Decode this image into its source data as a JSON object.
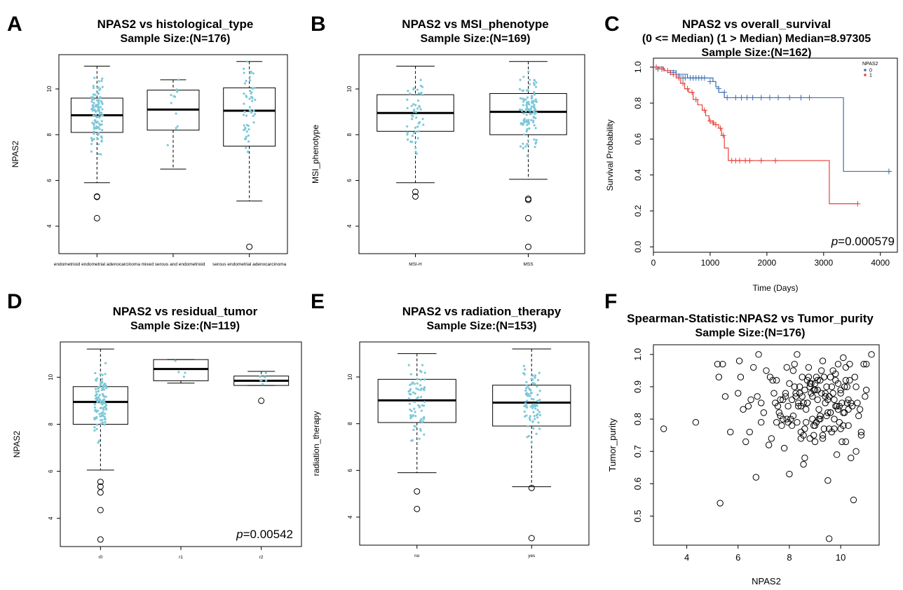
{
  "chart_data": [
    {
      "id": "A",
      "panel_letter": "A",
      "type": "box",
      "title": "NPAS2 vs histological_type",
      "subtitle": "Sample Size:(N=176)",
      "xlabel": "",
      "ylabel": "NPAS2",
      "ylim": [
        2.8,
        11.5
      ],
      "yticks": [
        4,
        6,
        8,
        10
      ],
      "categories": [
        "endometrioid endometrial adenocarcinoma",
        "mixed serous and endometrioid",
        "serous endometrial adenocarcinoma"
      ],
      "boxes": [
        {
          "min": 5.9,
          "q1": 8.1,
          "median": 8.85,
          "q3": 9.6,
          "max": 11.0
        },
        {
          "min": 6.5,
          "q1": 8.2,
          "median": 9.1,
          "q3": 9.95,
          "max": 10.4
        },
        {
          "min": 5.1,
          "q1": 7.5,
          "median": 9.05,
          "q3": 10.05,
          "max": 11.2
        }
      ],
      "outliers": [
        {
          "category": 0,
          "values": [
            5.3,
            5.28,
            4.35
          ]
        },
        {
          "category": 2,
          "values": [
            3.1
          ]
        }
      ],
      "point_counts": [
        110,
        12,
        54
      ],
      "p_value": ""
    },
    {
      "id": "B",
      "panel_letter": "B",
      "type": "box",
      "title": "NPAS2 vs MSI_phenotype",
      "subtitle": "Sample Size:(N=169)",
      "xlabel": "",
      "ylabel": "MSI_phenotype",
      "ylim": [
        2.8,
        11.5
      ],
      "yticks": [
        4,
        6,
        8,
        10
      ],
      "categories": [
        "MSI-H",
        "MSS"
      ],
      "boxes": [
        {
          "min": 5.9,
          "q1": 8.15,
          "median": 8.95,
          "q3": 9.75,
          "max": 11.0
        },
        {
          "min": 6.05,
          "q1": 8.0,
          "median": 9.0,
          "q3": 9.8,
          "max": 11.2
        }
      ],
      "outliers": [
        {
          "category": 0,
          "values": [
            5.5,
            5.3
          ]
        },
        {
          "category": 1,
          "values": [
            5.2,
            5.15,
            4.35,
            3.1
          ]
        }
      ],
      "point_counts": [
        50,
        119
      ],
      "p_value": ""
    },
    {
      "id": "C",
      "panel_letter": "C",
      "type": "line",
      "title": "NPAS2 vs overall_survival",
      "subtitle": "(0 <= Median) (1 > Median) Median=8.97305",
      "subtitle2": "Sample Size:(N=162)",
      "xlabel": "Time (Days)",
      "ylabel": "Survival Probability",
      "xlim": [
        0,
        4300
      ],
      "ylim": [
        -0.03,
        1.05
      ],
      "xticks": [
        0,
        1000,
        2000,
        3000,
        4000
      ],
      "yticks": [
        0.0,
        0.2,
        0.4,
        0.6,
        0.8,
        1.0
      ],
      "legend_title": "NPAS2",
      "legend_position": "top-right",
      "series": [
        {
          "name": "0",
          "color": "#3d6db5",
          "steps": [
            [
              0,
              1.0
            ],
            [
              180,
              0.98
            ],
            [
              400,
              0.96
            ],
            [
              600,
              0.94
            ],
            [
              1050,
              0.92
            ],
            [
              1100,
              0.89
            ],
            [
              1150,
              0.86
            ],
            [
              1250,
              0.83
            ],
            [
              3350,
              0.42
            ],
            [
              4200,
              0.42
            ]
          ],
          "censors": [
            [
              80,
              0.99
            ],
            [
              150,
              0.99
            ],
            [
              300,
              0.97
            ],
            [
              350,
              0.97
            ],
            [
              450,
              0.95
            ],
            [
              520,
              0.94
            ],
            [
              560,
              0.94
            ],
            [
              650,
              0.94
            ],
            [
              700,
              0.94
            ],
            [
              750,
              0.94
            ],
            [
              800,
              0.94
            ],
            [
              850,
              0.94
            ],
            [
              900,
              0.94
            ],
            [
              1000,
              0.92
            ],
            [
              1150,
              0.88
            ],
            [
              1250,
              0.86
            ],
            [
              1300,
              0.83
            ],
            [
              1450,
              0.83
            ],
            [
              1550,
              0.83
            ],
            [
              1650,
              0.83
            ],
            [
              1750,
              0.83
            ],
            [
              1900,
              0.83
            ],
            [
              2050,
              0.83
            ],
            [
              2200,
              0.83
            ],
            [
              2400,
              0.83
            ],
            [
              2600,
              0.83
            ],
            [
              2750,
              0.83
            ],
            [
              4150,
              0.42
            ]
          ]
        },
        {
          "name": "1",
          "color": "#e8413a",
          "steps": [
            [
              0,
              1.0
            ],
            [
              100,
              0.99
            ],
            [
              200,
              0.98
            ],
            [
              300,
              0.96
            ],
            [
              400,
              0.94
            ],
            [
              480,
              0.91
            ],
            [
              550,
              0.88
            ],
            [
              620,
              0.86
            ],
            [
              700,
              0.82
            ],
            [
              780,
              0.79
            ],
            [
              860,
              0.76
            ],
            [
              920,
              0.73
            ],
            [
              980,
              0.7
            ],
            [
              1060,
              0.68
            ],
            [
              1150,
              0.66
            ],
            [
              1200,
              0.62
            ],
            [
              1250,
              0.55
            ],
            [
              1320,
              0.48
            ],
            [
              3100,
              0.24
            ],
            [
              3600,
              0.24
            ]
          ],
          "censors": [
            [
              50,
              1.0
            ],
            [
              150,
              0.99
            ],
            [
              250,
              0.98
            ],
            [
              350,
              0.96
            ],
            [
              450,
              0.94
            ],
            [
              520,
              0.91
            ],
            [
              600,
              0.88
            ],
            [
              680,
              0.86
            ],
            [
              750,
              0.82
            ],
            [
              900,
              0.76
            ],
            [
              1000,
              0.7
            ],
            [
              1050,
              0.69
            ],
            [
              1100,
              0.68
            ],
            [
              1180,
              0.66
            ],
            [
              1230,
              0.62
            ],
            [
              1380,
              0.48
            ],
            [
              1450,
              0.48
            ],
            [
              1520,
              0.48
            ],
            [
              1620,
              0.48
            ],
            [
              1700,
              0.48
            ],
            [
              1900,
              0.48
            ],
            [
              2150,
              0.48
            ],
            [
              3600,
              0.24
            ]
          ]
        }
      ],
      "p_value": "=0.000579"
    },
    {
      "id": "D",
      "panel_letter": "D",
      "type": "box",
      "title": "NPAS2 vs residual_tumor",
      "subtitle": "Sample Size:(N=119)",
      "xlabel": "",
      "ylabel": "NPAS2",
      "ylim": [
        2.8,
        11.5
      ],
      "yticks": [
        4,
        6,
        8,
        10
      ],
      "categories": [
        "r0",
        "r1",
        "r2"
      ],
      "boxes": [
        {
          "min": 6.05,
          "q1": 8.0,
          "median": 8.95,
          "q3": 9.6,
          "max": 11.2
        },
        {
          "min": 9.75,
          "q1": 9.85,
          "median": 10.35,
          "q3": 10.75,
          "max": 10.75
        },
        {
          "min": 9.65,
          "q1": 9.65,
          "median": 9.85,
          "q3": 10.05,
          "max": 10.25
        }
      ],
      "outliers": [
        {
          "category": 0,
          "values": [
            5.55,
            5.35,
            5.1,
            4.35,
            3.1
          ]
        },
        {
          "category": 2,
          "values": [
            9.0
          ]
        }
      ],
      "point_counts": [
        108,
        4,
        7
      ],
      "p_value": "=0.00542"
    },
    {
      "id": "E",
      "panel_letter": "E",
      "type": "box",
      "title": "NPAS2 vs radiation_therapy",
      "subtitle": "Sample Size:(N=153)",
      "xlabel": "",
      "ylabel": "radiation_therapy",
      "ylim": [
        2.8,
        11.5
      ],
      "yticks": [
        4,
        6,
        8,
        10
      ],
      "categories": [
        "no",
        "yes"
      ],
      "boxes": [
        {
          "min": 5.9,
          "q1": 8.05,
          "median": 9.0,
          "q3": 9.9,
          "max": 11.0
        },
        {
          "min": 5.3,
          "q1": 7.9,
          "median": 8.9,
          "q3": 9.65,
          "max": 11.2
        }
      ],
      "outliers": [
        {
          "category": 0,
          "values": [
            5.1,
            4.35
          ]
        },
        {
          "category": 1,
          "values": [
            5.25,
            3.1
          ]
        }
      ],
      "point_counts": [
        70,
        83
      ],
      "p_value": ""
    },
    {
      "id": "F",
      "panel_letter": "F",
      "type": "scatter",
      "title": "Spearman-Statistic:NPAS2 vs Tumor_purity",
      "subtitle": "Sample Size:(N=176)",
      "xlabel": "NPAS2",
      "ylabel": "Tumor_purity",
      "xlim": [
        2.7,
        11.5
      ],
      "ylim": [
        0.41,
        1.03
      ],
      "xticks": [
        4,
        6,
        8,
        10
      ],
      "yticks": [
        0.5,
        0.6,
        0.7,
        0.8,
        0.9,
        1.0
      ],
      "x": [
        3.1,
        4.35,
        5.2,
        5.25,
        5.4,
        5.5,
        5.7,
        6.05,
        6.1,
        6.2,
        6.3,
        6.45,
        6.5,
        6.6,
        6.7,
        6.75,
        6.8,
        6.9,
        7.0,
        7.1,
        7.25,
        7.35,
        7.4,
        7.45,
        7.5,
        7.55,
        7.6,
        7.65,
        7.7,
        7.75,
        7.8,
        7.85,
        7.9,
        7.95,
        8.0,
        8.05,
        8.1,
        8.15,
        8.2,
        8.25,
        8.3,
        8.35,
        8.4,
        8.45,
        8.5,
        8.55,
        8.6,
        8.65,
        8.7,
        8.75,
        8.8,
        8.85,
        8.9,
        8.95,
        9.0,
        9.05,
        9.1,
        9.15,
        9.2,
        9.25,
        9.3,
        9.35,
        9.4,
        9.45,
        9.5,
        9.55,
        9.6,
        9.65,
        9.7,
        9.75,
        9.8,
        9.85,
        9.9,
        9.95,
        10.0,
        10.05,
        10.1,
        10.15,
        10.2,
        10.25,
        10.3,
        10.35,
        10.4,
        10.5,
        10.6,
        10.7,
        10.8,
        10.9,
        11.0,
        11.2,
        5.3,
        6.0,
        6.4,
        6.9,
        7.3,
        7.5,
        7.9,
        8.0,
        8.2,
        8.3,
        8.5,
        8.6,
        8.7,
        8.8,
        8.9,
        9.0,
        9.1,
        9.2,
        9.3,
        9.4,
        9.5,
        9.6,
        9.7,
        9.8,
        9.9,
        10.0,
        10.1,
        10.2,
        10.3,
        10.45,
        10.6,
        10.8,
        11.0,
        8.1,
        8.35,
        8.55,
        8.75,
        8.95,
        9.15,
        9.35,
        9.55,
        9.75,
        9.95,
        10.15,
        10.35,
        7.65,
        7.85,
        8.45,
        8.65,
        8.85,
        9.05,
        9.25,
        9.45,
        9.65,
        9.85,
        10.05,
        10.25,
        10.55,
        10.75,
        10.95,
        7.2,
        7.75,
        8.25,
        8.4,
        8.6,
        8.8,
        9.0,
        9.2,
        9.4,
        9.6,
        9.8,
        10.0,
        10.2,
        10.4,
        9.55,
        8.15,
        9.1,
        9.9,
        7.95,
        8.7,
        9.3,
        10.1,
        8.55,
        9.75,
        8.95,
        10.3,
        9.0,
        9.5,
        8.45,
        10.65
      ],
      "y": [
        0.77,
        0.79,
        0.97,
        0.93,
        0.97,
        0.87,
        0.76,
        0.98,
        0.93,
        0.83,
        0.73,
        0.76,
        0.86,
        0.96,
        0.62,
        0.87,
        1.0,
        0.85,
        0.82,
        0.95,
        0.93,
        0.92,
        0.88,
        0.85,
        0.79,
        0.84,
        0.82,
        0.86,
        0.78,
        0.8,
        0.71,
        0.88,
        0.96,
        0.84,
        0.63,
        0.8,
        0.78,
        0.81,
        0.9,
        0.87,
        1.0,
        0.84,
        0.88,
        0.76,
        0.93,
        0.85,
        0.68,
        0.79,
        0.92,
        0.96,
        0.9,
        0.88,
        0.87,
        0.78,
        0.73,
        0.93,
        0.89,
        0.83,
        0.81,
        0.95,
        0.98,
        0.77,
        0.85,
        0.9,
        0.61,
        0.87,
        0.82,
        0.76,
        0.95,
        0.8,
        0.92,
        0.69,
        0.91,
        0.79,
        0.88,
        0.85,
        0.99,
        0.82,
        0.73,
        0.9,
        0.86,
        0.97,
        0.68,
        0.55,
        0.7,
        0.81,
        0.75,
        0.97,
        0.97,
        1.0,
        0.54,
        0.88,
        0.84,
        0.79,
        0.74,
        0.92,
        0.8,
        0.91,
        0.97,
        0.79,
        0.87,
        0.89,
        0.85,
        0.91,
        0.8,
        0.78,
        0.86,
        0.92,
        0.74,
        0.87,
        0.82,
        0.93,
        0.88,
        0.94,
        0.83,
        0.89,
        0.82,
        0.96,
        0.78,
        0.84,
        0.9,
        0.76,
        0.89,
        0.86,
        0.85,
        0.75,
        0.93,
        0.89,
        0.8,
        0.93,
        0.77,
        0.86,
        0.84,
        0.9,
        0.92,
        0.81,
        0.87,
        0.84,
        0.83,
        0.91,
        0.79,
        0.88,
        0.81,
        0.9,
        0.84,
        0.73,
        0.85,
        0.93,
        0.83,
        0.87,
        0.72,
        0.86,
        0.88,
        0.9,
        0.77,
        0.74,
        0.89,
        0.8,
        0.88,
        0.82,
        0.84,
        0.77,
        0.92,
        0.85,
        0.43,
        0.95,
        0.92,
        0.97,
        0.79,
        0.85,
        0.75,
        0.78,
        0.66,
        0.77,
        0.75,
        0.83,
        0.91,
        0.86,
        0.74,
        0.85
      ],
      "p_value": ""
    }
  ]
}
